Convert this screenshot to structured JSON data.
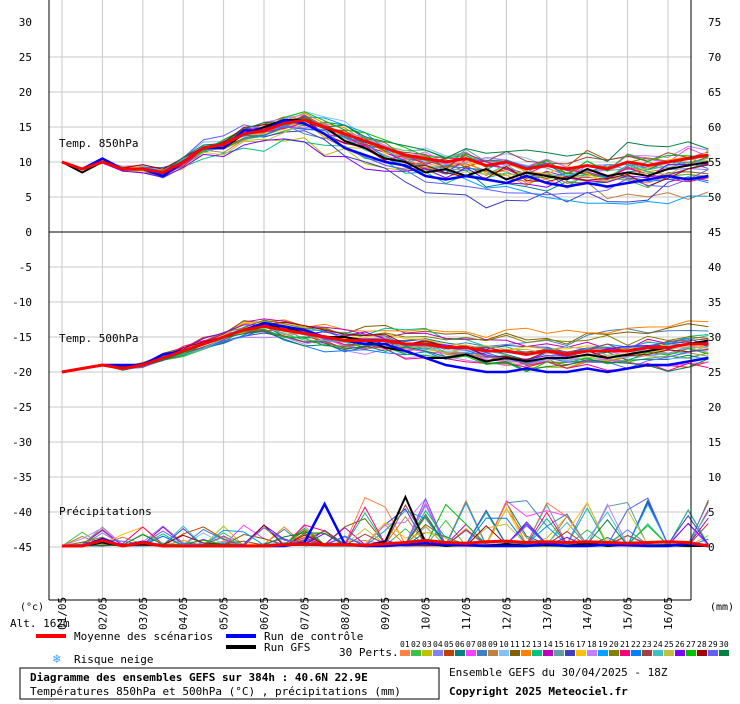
{
  "panels": [
    {
      "label": "Temp. 850hPa",
      "left_ticks": [
        "30",
        "25",
        "20",
        "15",
        "10",
        "5",
        "0"
      ],
      "right_ticks": [
        "75",
        "70",
        "65",
        "60",
        "55",
        "50",
        "45"
      ]
    },
    {
      "label": "Temp. 500hPa",
      "left_ticks": [
        "-5",
        "-10",
        "-15",
        "-20",
        "-25",
        "-30",
        "-35",
        "-40",
        "-45"
      ],
      "right_ticks": [
        "40",
        "35",
        "30",
        "25",
        "20",
        "15",
        "10",
        "5",
        "0"
      ]
    },
    {
      "label": "Précipitations"
    }
  ],
  "x_axis": {
    "dates": [
      "01/05",
      "02/05",
      "03/05",
      "04/05",
      "05/05",
      "06/05",
      "07/05",
      "08/05",
      "09/05",
      "10/05",
      "11/05",
      "12/05",
      "13/05",
      "14/05",
      "15/05",
      "16/05"
    ],
    "left_unit": "(°c)",
    "right_unit": "(mm)",
    "altitude": "Alt. 162m"
  },
  "legend": {
    "mean": "Moyenne des scénarios",
    "control": "Run de contrôle",
    "gfs": "Run GFS",
    "snow": "Risque neige",
    "perts_label": "30 Perts.",
    "pert_numbers": [
      "01",
      "02",
      "03",
      "04",
      "05",
      "06",
      "07",
      "08",
      "09",
      "10",
      "11",
      "12",
      "13",
      "14",
      "15",
      "16",
      "17",
      "18",
      "19",
      "20",
      "21",
      "22",
      "23",
      "24",
      "25",
      "26",
      "27",
      "28",
      "29",
      "30"
    ],
    "pert_colors": [
      "#ff8040",
      "#40c040",
      "#c0c000",
      "#8080ff",
      "#c04000",
      "#008080",
      "#ff40ff",
      "#4080c0",
      "#c08040",
      "#80c0ff",
      "#806000",
      "#ff8000",
      "#00c080",
      "#c000c0",
      "#60a0a0",
      "#4040c0",
      "#ffc000",
      "#c080ff",
      "#00a0ff",
      "#808000",
      "#ff0080",
      "#0080ff",
      "#a04040",
      "#40c0c0",
      "#c0c040",
      "#8000ff",
      "#00c000",
      "#a00000",
      "#6060ff",
      "#008040"
    ]
  },
  "title": {
    "main": "Diagramme des ensembles GEFS sur 384h : 40.6N 22.9E",
    "sub": "Températures 850hPa et 500hPa (°C) , précipitations (mm)"
  },
  "info": {
    "run": "Ensemble GEFS du 30/04/2025 - 18Z",
    "copyright": "Copyright 2025 Meteociel.fr"
  },
  "colors": {
    "mean": "#ff0000",
    "control": "#0000ff",
    "gfs": "#000000",
    "snow": "#40a0ff",
    "grid": "#c8c8c8"
  },
  "chart_data": [
    {
      "type": "line",
      "title": "Temp. 850hPa",
      "ylabel": "(°c)",
      "ylim": [
        0,
        30
      ],
      "x_unit": "days from 01/05 00Z",
      "series": [
        {
          "name": "Moyenne des scénarios",
          "x": [
            0,
            0.5,
            1,
            1.5,
            2,
            2.5,
            3,
            3.5,
            4,
            4.5,
            5,
            5.5,
            6,
            6.5,
            7,
            7.5,
            8,
            8.5,
            9,
            9.5,
            10,
            10.5,
            11,
            11.5,
            12,
            12.5,
            13,
            13.5,
            14,
            14.5,
            15,
            15.5,
            16
          ],
          "y": [
            10,
            9,
            10,
            9,
            9,
            8.5,
            10,
            12,
            12.5,
            14,
            14.5,
            15.5,
            16,
            15,
            14,
            13,
            12,
            11,
            10.5,
            10,
            10.5,
            9.5,
            10,
            9,
            9.5,
            9,
            9.5,
            9,
            10,
            9.5,
            10,
            10.5,
            11
          ]
        },
        {
          "name": "Run de contrôle",
          "x": [
            0,
            0.5,
            1,
            1.5,
            2,
            2.5,
            3,
            3.5,
            4,
            4.5,
            5,
            5.5,
            6,
            6.5,
            7,
            7.5,
            8,
            8.5,
            9,
            9.5,
            10,
            10.5,
            11,
            11.5,
            12,
            12.5,
            13,
            13.5,
            14,
            14.5,
            15,
            15.5,
            16
          ],
          "y": [
            10,
            9,
            10.5,
            9,
            9,
            8,
            10,
            12,
            12,
            14.5,
            14.5,
            16,
            15.5,
            14,
            12,
            11,
            10,
            9.5,
            8,
            7.5,
            8,
            7.5,
            7,
            8,
            7,
            6.5,
            7,
            6.5,
            7,
            7.5,
            8,
            7.5,
            8
          ]
        },
        {
          "name": "Run GFS",
          "x": [
            0,
            0.5,
            1,
            1.5,
            2,
            2.5,
            3,
            3.5,
            4,
            4.5,
            5,
            5.5,
            6,
            6.5,
            7,
            7.5,
            8,
            8.5,
            9,
            9.5,
            10,
            10.5,
            11,
            11.5,
            12,
            12.5,
            13,
            13.5,
            14,
            14.5,
            15,
            15.5,
            16
          ],
          "y": [
            10,
            8.5,
            10,
            9,
            9,
            8,
            10,
            12,
            12,
            14,
            15,
            16,
            16,
            15,
            13,
            12,
            10.5,
            10,
            8.5,
            9,
            8,
            9,
            7.5,
            8.5,
            8,
            7.5,
            9,
            8,
            8.5,
            8,
            9,
            9.5,
            10
          ]
        }
      ]
    },
    {
      "type": "line",
      "title": "Temp. 500hPa",
      "ylabel": "(°c)",
      "ylim": [
        -25,
        -5
      ],
      "x_unit": "days from 01/05 00Z",
      "series": [
        {
          "name": "Moyenne des scénarios",
          "x": [
            0,
            0.5,
            1,
            1.5,
            2,
            2.5,
            3,
            3.5,
            4,
            4.5,
            5,
            5.5,
            6,
            6.5,
            7,
            7.5,
            8,
            8.5,
            9,
            9.5,
            10,
            10.5,
            11,
            11.5,
            12,
            12.5,
            13,
            13.5,
            14,
            14.5,
            15,
            15.5,
            16
          ],
          "y": [
            -20,
            -19.5,
            -19,
            -19.5,
            -19,
            -18,
            -17,
            -16,
            -15,
            -14,
            -13.5,
            -14,
            -14.5,
            -15,
            -15.5,
            -15.5,
            -15.5,
            -16,
            -16,
            -16.5,
            -16.5,
            -17,
            -17,
            -17.5,
            -17,
            -17.5,
            -17,
            -17,
            -17,
            -16.5,
            -16.5,
            -16,
            -16
          ]
        },
        {
          "name": "Run de contrôle",
          "x": [
            0,
            0.5,
            1,
            1.5,
            2,
            2.5,
            3,
            3.5,
            4,
            4.5,
            5,
            5.5,
            6,
            6.5,
            7,
            7.5,
            8,
            8.5,
            9,
            9.5,
            10,
            10.5,
            11,
            11.5,
            12,
            12.5,
            13,
            13.5,
            14,
            14.5,
            15,
            15.5,
            16
          ],
          "y": [
            -20,
            -19.5,
            -19,
            -19,
            -19,
            -17.5,
            -17,
            -16,
            -15,
            -14,
            -13,
            -13.5,
            -14,
            -15,
            -15.5,
            -16,
            -16,
            -17,
            -18,
            -19,
            -19.5,
            -20,
            -20,
            -19.5,
            -20,
            -20,
            -19.5,
            -20,
            -19.5,
            -19,
            -19,
            -18.5,
            -18
          ]
        },
        {
          "name": "Run GFS",
          "x": [
            0,
            0.5,
            1,
            1.5,
            2,
            2.5,
            3,
            3.5,
            4,
            4.5,
            5,
            5.5,
            6,
            6.5,
            7,
            7.5,
            8,
            8.5,
            9,
            9.5,
            10,
            10.5,
            11,
            11.5,
            12,
            12.5,
            13,
            13.5,
            14,
            14.5,
            15,
            15.5,
            16
          ],
          "y": [
            -20,
            -19.5,
            -19,
            -19.5,
            -19,
            -17.5,
            -17,
            -16,
            -15,
            -14,
            -13.5,
            -13.5,
            -14.5,
            -15,
            -15,
            -15.5,
            -16.5,
            -17,
            -18,
            -18,
            -17.5,
            -18.5,
            -18,
            -18.5,
            -18,
            -18,
            -17.5,
            -18,
            -17.5,
            -17,
            -16.5,
            -16,
            -15.5
          ]
        }
      ]
    },
    {
      "type": "line",
      "title": "Précipitations",
      "ylabel": "(mm)",
      "ylim": [
        0,
        40
      ],
      "x_unit": "days from 01/05 00Z",
      "series": [
        {
          "name": "Moyenne des scénarios",
          "x": [
            0,
            0.5,
            1,
            1.5,
            2,
            2.5,
            3,
            3.5,
            4,
            4.5,
            5,
            5.5,
            6,
            6.5,
            7,
            7.5,
            8,
            8.5,
            9,
            9.5,
            10,
            10.5,
            11,
            11.5,
            12,
            12.5,
            13,
            13.5,
            14,
            14.5,
            15,
            15.5,
            16
          ],
          "y": [
            0,
            0,
            0.8,
            0,
            0.5,
            0,
            0,
            0,
            0,
            0,
            0,
            0.2,
            0.3,
            0.2,
            0.2,
            0.1,
            0.3,
            0.5,
            0.8,
            0.5,
            0.4,
            0.6,
            0.7,
            0.5,
            0.6,
            0.5,
            0.6,
            0.5,
            0.4,
            0.5,
            0.6,
            0.5,
            0
          ]
        },
        {
          "name": "Run de contrôle",
          "x": [
            0,
            0.5,
            1,
            1.5,
            2,
            2.5,
            3,
            3.5,
            4,
            4.5,
            5,
            5.5,
            6,
            6.5,
            7,
            7.5,
            8,
            8.5,
            9,
            9.5,
            10,
            10.5,
            11,
            11.5,
            12,
            12.5,
            13,
            13.5,
            14,
            14.5,
            15,
            15.5,
            16
          ],
          "y": [
            0,
            0,
            1,
            0,
            0.6,
            0,
            0,
            0,
            0,
            0,
            0,
            0,
            0.5,
            6,
            0.3,
            0,
            0,
            0.2,
            0.4,
            0.2,
            0.1,
            0,
            0,
            0,
            0.3,
            0,
            0,
            0.2,
            0.1,
            0,
            0,
            0.3,
            0
          ]
        },
        {
          "name": "Run GFS",
          "x": [
            0,
            0.5,
            1,
            1.5,
            2,
            2.5,
            3,
            3.5,
            4,
            4.5,
            5,
            5.5,
            6,
            6.5,
            7,
            7.5,
            8,
            8.5,
            9,
            9.5,
            10,
            10.5,
            11,
            11.5,
            12,
            12.5,
            13,
            13.5,
            14,
            14.5,
            15,
            15.5,
            16
          ],
          "y": [
            0,
            0,
            0.5,
            0,
            0.3,
            0,
            0,
            0,
            0,
            0,
            0,
            0.1,
            0.2,
            0.1,
            0.1,
            0,
            0.6,
            7,
            0.4,
            0,
            0.2,
            0,
            0.3,
            0,
            0.1,
            0,
            0.4,
            0,
            0.2,
            0,
            0.1,
            0,
            0
          ]
        }
      ]
    }
  ]
}
